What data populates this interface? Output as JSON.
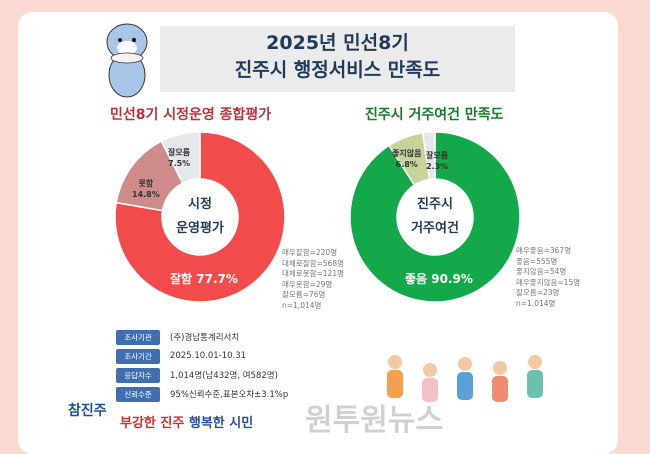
{
  "title": {
    "line1": "2025년 민선8기",
    "line2": "진주시 행정서비스 만족도"
  },
  "chart_data": [
    {
      "type": "pie",
      "title": "민선8기 시정운영 종합평가",
      "center_label": [
        "시정",
        "운영평가"
      ],
      "categories": [
        "잘함",
        "못함",
        "잘모름"
      ],
      "values": [
        77.7,
        14.8,
        7.5
      ],
      "colors": [
        "#f24b4b",
        "#cf8b8b",
        "#e6e7eb"
      ],
      "legend": [
        "매우잘함=220명",
        "대체로잘함=568명",
        "대체로못함=121명",
        "매우못함=29명",
        "잘모름=76명",
        "n=1,014명"
      ]
    },
    {
      "type": "pie",
      "title": "진주시 거주여건 만족도",
      "center_label": [
        "진주시",
        "거주여건"
      ],
      "categories": [
        "좋음",
        "좋지않음",
        "잘모름"
      ],
      "values": [
        90.9,
        6.8,
        2.3
      ],
      "colors": [
        "#13a84a",
        "#c6d49c",
        "#e6e7eb"
      ],
      "legend": [
        "매우좋음=367명",
        "좋음=555명",
        "좋지않음=54명",
        "매우좋지않음=15명",
        "잘모름=23명",
        "n=1,014명"
      ]
    }
  ],
  "labels": {
    "left_big": "잘함 77.7%",
    "left_s1": "못함",
    "left_s1v": "14.8%",
    "left_s2": "잘모름",
    "left_s2v": "7.5%",
    "right_big": "좋음 90.9%",
    "right_s1": "좋지않음",
    "right_s1v": "6.8%",
    "right_s2": "잘모름",
    "right_s2v": "2.3%"
  },
  "info": [
    {
      "tag": "조사기관",
      "value": "(주)경남통계리서치"
    },
    {
      "tag": "조사기간",
      "value": "2025.10.01-10.31"
    },
    {
      "tag": "응답자수",
      "value": "1,014명(남432명, 여582명)"
    },
    {
      "tag": "신뢰수준",
      "value": "95%신뢰수준,표본오차±3.1%p"
    }
  ],
  "slogan": {
    "part1": "부강한 진주",
    "part2": " 행복한 시민"
  },
  "logo": "참진주",
  "watermark": "원투원뉴스"
}
